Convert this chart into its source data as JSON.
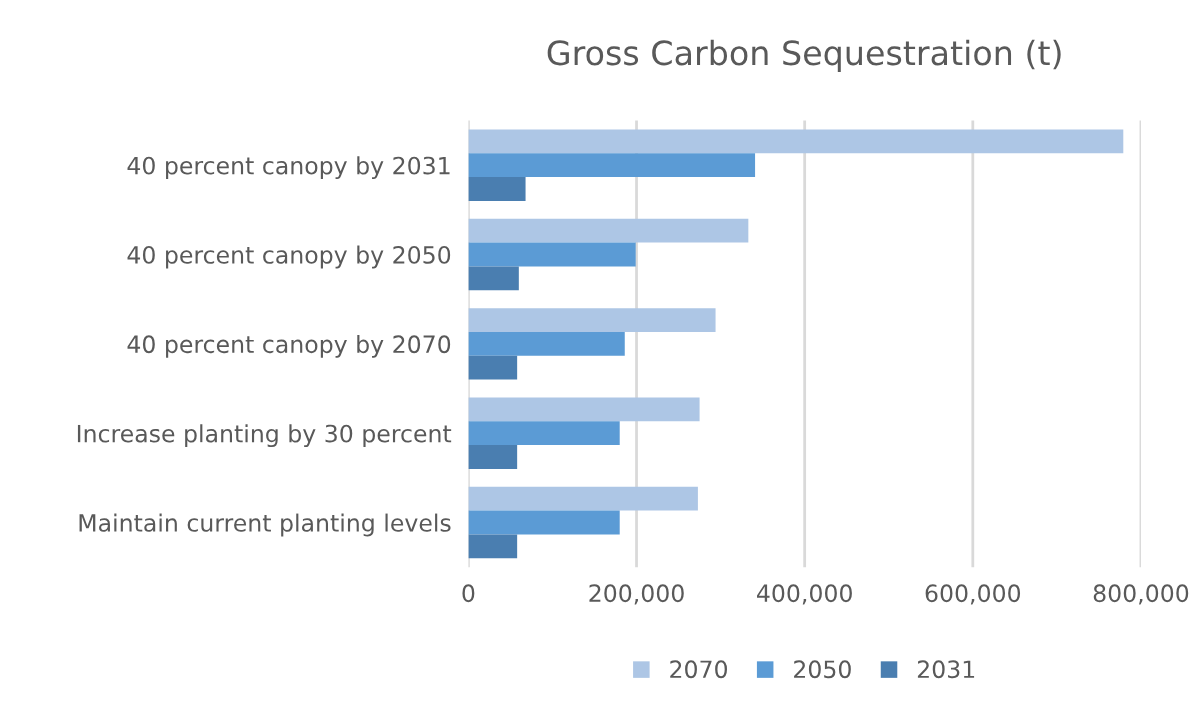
{
  "chart_data": {
    "type": "bar",
    "orientation": "horizontal",
    "title": "Gross Carbon Sequestration (t)",
    "categories": [
      "40 percent canopy by 2031",
      "40 percent canopy by 2050",
      "40 percent canopy by 2070",
      "Increase planting by 30 percent",
      "Maintain current planting levels"
    ],
    "series": [
      {
        "name": "2070",
        "color": "#adc6e5",
        "values": [
          779000,
          333000,
          294000,
          275000,
          273000
        ]
      },
      {
        "name": "2050",
        "color": "#5b9bd5",
        "values": [
          341000,
          199000,
          186000,
          180000,
          180000
        ]
      },
      {
        "name": "2031",
        "color": "#4a7eb0",
        "values": [
          68000,
          60000,
          58000,
          58000,
          58000
        ]
      }
    ],
    "xlim": [
      0,
      800000
    ],
    "xticks": [
      0,
      {
        "value": 200000,
        "label": "200,000"
      },
      {
        "value": 400000,
        "label": "400,000"
      },
      {
        "value": 600000,
        "label": "600,000"
      },
      {
        "value": 800000,
        "label": "800,000"
      }
    ],
    "grid": "x",
    "legend": "bottom"
  }
}
